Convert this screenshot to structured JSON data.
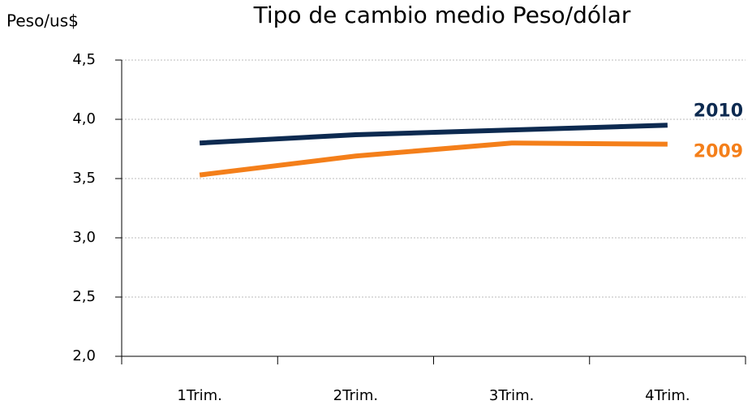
{
  "chart_data": {
    "type": "line",
    "title": "Tipo de cambio medio Peso/dólar",
    "y_label": "Peso/us$",
    "categories": [
      "1Trim.",
      "2Trim.",
      "3Trim.",
      "4Trim."
    ],
    "series": [
      {
        "name": "2010",
        "color": "#0d2a50",
        "values": [
          3.8,
          3.87,
          3.91,
          3.95
        ]
      },
      {
        "name": "2009",
        "color": "#f47f1a",
        "values": [
          3.53,
          3.69,
          3.8,
          3.79
        ]
      }
    ],
    "ylim": [
      2.0,
      4.5
    ],
    "yticks": [
      {
        "value": 2.0,
        "label": "2,0"
      },
      {
        "value": 2.5,
        "label": "2,5"
      },
      {
        "value": 3.0,
        "label": "3,0"
      },
      {
        "value": 3.5,
        "label": "3,5"
      },
      {
        "value": 4.0,
        "label": "4,0"
      },
      {
        "value": 4.5,
        "label": "4,5"
      }
    ],
    "grid": true
  }
}
